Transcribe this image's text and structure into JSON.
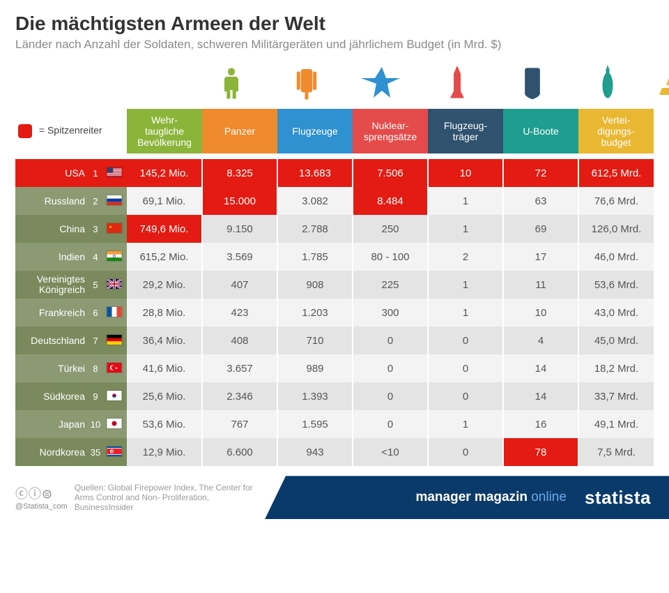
{
  "title": "Die mächtigsten Armeen der Welt",
  "subtitle": "Länder nach Anzahl der Soldaten, schweren Militärgeräten und jährlichem Budget (in Mrd. $)",
  "legend_label": "= Spitzenreiter",
  "leader_color": "#e31b12",
  "columns": [
    {
      "key": "pop",
      "label_lines": [
        "Wehr-",
        "taugliche",
        "Bevölkerung"
      ],
      "color": "#8bb43a",
      "icon": "soldier"
    },
    {
      "key": "tanks",
      "label_lines": [
        "Panzer"
      ],
      "color": "#ef8b2d",
      "icon": "tank"
    },
    {
      "key": "planes",
      "label_lines": [
        "Flugzeuge"
      ],
      "color": "#2f91cf",
      "icon": "jet"
    },
    {
      "key": "nukes",
      "label_lines": [
        "Nuklear-",
        "sprengsätze"
      ],
      "color": "#e44b4a",
      "icon": "missile"
    },
    {
      "key": "carrier",
      "label_lines": [
        "Flugzeug-",
        "träger"
      ],
      "color": "#2f526f",
      "icon": "carrier"
    },
    {
      "key": "subs",
      "label_lines": [
        "U-Boote"
      ],
      "color": "#1f9d8f",
      "icon": "sub"
    },
    {
      "key": "budget",
      "label_lines": [
        "Vertei-",
        "digungs-",
        "budget"
      ],
      "color": "#e9b731",
      "icon": "gold"
    }
  ],
  "label_col_bg": "#7a8a5c",
  "label_col_alt_bg": "#8c9a74",
  "rows": [
    {
      "rank": "1",
      "country": "USA",
      "flag": "us",
      "cells": [
        {
          "v": "145,2 Mio."
        },
        {
          "v": "8.325"
        },
        {
          "v": "13.683",
          "lead": true
        },
        {
          "v": "7.506"
        },
        {
          "v": "10",
          "lead": true
        },
        {
          "v": "72"
        },
        {
          "v": "612,5 Mrd.",
          "lead": true
        }
      ]
    },
    {
      "rank": "2",
      "country": "Russland",
      "flag": "ru",
      "cells": [
        {
          "v": "69,1 Mio."
        },
        {
          "v": "15.000",
          "lead": true
        },
        {
          "v": "3.082"
        },
        {
          "v": "8.484",
          "lead": true
        },
        {
          "v": "1"
        },
        {
          "v": "63"
        },
        {
          "v": "76,6 Mrd."
        }
      ]
    },
    {
      "rank": "3",
      "country": "China",
      "flag": "cn",
      "cells": [
        {
          "v": "749,6 Mio.",
          "lead": true
        },
        {
          "v": "9.150"
        },
        {
          "v": "2.788"
        },
        {
          "v": "250"
        },
        {
          "v": "1"
        },
        {
          "v": "69"
        },
        {
          "v": "126,0 Mrd."
        }
      ]
    },
    {
      "rank": "4",
      "country": "Indien",
      "flag": "in",
      "cells": [
        {
          "v": "615,2 Mio."
        },
        {
          "v": "3.569"
        },
        {
          "v": "1.785"
        },
        {
          "v": "80 - 100"
        },
        {
          "v": "2"
        },
        {
          "v": "17"
        },
        {
          "v": "46,0 Mrd."
        }
      ]
    },
    {
      "rank": "5",
      "country": "Vereinigtes\nKönigreich",
      "flag": "gb",
      "cells": [
        {
          "v": "29,2 Mio."
        },
        {
          "v": "407"
        },
        {
          "v": "908"
        },
        {
          "v": "225"
        },
        {
          "v": "1"
        },
        {
          "v": "11"
        },
        {
          "v": "53,6 Mrd."
        }
      ]
    },
    {
      "rank": "6",
      "country": "Frankreich",
      "flag": "fr",
      "cells": [
        {
          "v": "28,8 Mio."
        },
        {
          "v": "423"
        },
        {
          "v": "1.203"
        },
        {
          "v": "300"
        },
        {
          "v": "1"
        },
        {
          "v": "10"
        },
        {
          "v": "43,0 Mrd."
        }
      ]
    },
    {
      "rank": "7",
      "country": "Deutschland",
      "flag": "de",
      "cells": [
        {
          "v": "36,4 Mio."
        },
        {
          "v": "408"
        },
        {
          "v": "710"
        },
        {
          "v": "0"
        },
        {
          "v": "0"
        },
        {
          "v": "4"
        },
        {
          "v": "45,0 Mrd."
        }
      ]
    },
    {
      "rank": "8",
      "country": "Türkei",
      "flag": "tr",
      "cells": [
        {
          "v": "41,6 Mio."
        },
        {
          "v": "3.657"
        },
        {
          "v": "989"
        },
        {
          "v": "0"
        },
        {
          "v": "0"
        },
        {
          "v": "14"
        },
        {
          "v": "18,2 Mrd."
        }
      ]
    },
    {
      "rank": "9",
      "country": "Südkorea",
      "flag": "kr",
      "cells": [
        {
          "v": "25,6 Mio."
        },
        {
          "v": "2.346"
        },
        {
          "v": "1.393"
        },
        {
          "v": "0"
        },
        {
          "v": "0"
        },
        {
          "v": "14"
        },
        {
          "v": "33,7 Mrd."
        }
      ]
    },
    {
      "rank": "10",
      "country": "Japan",
      "flag": "jp",
      "cells": [
        {
          "v": "53,6 Mio."
        },
        {
          "v": "767"
        },
        {
          "v": "1.595"
        },
        {
          "v": "0"
        },
        {
          "v": "1"
        },
        {
          "v": "16"
        },
        {
          "v": "49,1 Mrd."
        }
      ]
    },
    {
      "rank": "35",
      "country": "Nordkorea",
      "flag": "kp",
      "cells": [
        {
          "v": "12,9 Mio."
        },
        {
          "v": "6.600"
        },
        {
          "v": "943"
        },
        {
          "v": "<10"
        },
        {
          "v": "0"
        },
        {
          "v": "78",
          "lead": true
        },
        {
          "v": "7,5 Mrd."
        }
      ]
    }
  ],
  "source_label": "Quellen:",
  "sources": "Global Firepower Index,\nThe Center for Arms Control and Non-\nProliferation, BusinessInsider",
  "cc_text": "ⓒⓘ⊜",
  "twitter_handle": "@Statista_com",
  "brand1_a": "manager magazin",
  "brand1_b": "online",
  "brand2": "statista",
  "footer_bg": "#0a3a6a"
}
